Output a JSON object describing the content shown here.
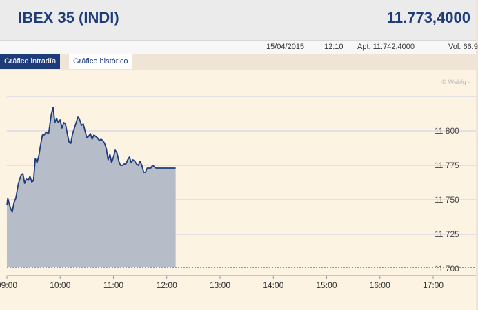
{
  "header": {
    "title": "IBEX 35 (INDI)",
    "price": "11.773,4000"
  },
  "infobar": {
    "date": "15/04/2015",
    "time": "12:10",
    "apt": "Apt. 11.742,4000",
    "vol": "Vol. 66.9"
  },
  "tabs": {
    "intraday": "Gráfico intradía",
    "historic": "Gráfico histórico"
  },
  "watermark": "© Webfg -",
  "colors": {
    "header_text": "#1f3c7a",
    "line": "#1f3c7a",
    "fill": "#b6bcc8",
    "chart_bg": "#fdf3e3",
    "grid": "#c7cde6"
  },
  "chart_data": {
    "type": "area",
    "title": "",
    "xlabel": "",
    "ylabel": "",
    "xlim": [
      "09:00",
      "17:00"
    ],
    "ylim": [
      11700,
      11825
    ],
    "y_ticks": [
      11700,
      11725,
      11750,
      11775,
      11800
    ],
    "y_tick_labels": [
      "11 700",
      "11 725",
      "11 750",
      "11 775",
      "11 800"
    ],
    "x_tick_labels": [
      "09:00",
      "10:00",
      "11:00",
      "12:00",
      "13:00",
      "14:00",
      "15:00",
      "16:00",
      "17:00"
    ],
    "baseline": 11701,
    "grid": true,
    "series": [
      {
        "x": [
          "09:00",
          "09:01",
          "09:04",
          "09:06",
          "09:08",
          "09:10",
          "09:13",
          "09:16",
          "09:18",
          "09:20",
          "09:22",
          "09:24",
          "09:26",
          "09:28",
          "09:30",
          "09:32",
          "09:34",
          "09:36",
          "09:38",
          "09:40",
          "09:42",
          "09:44",
          "09:47",
          "09:50",
          "09:52",
          "09:54",
          "09:56",
          "09:58",
          "10:00",
          "10:02",
          "10:04",
          "10:06",
          "10:08",
          "10:10",
          "10:12",
          "10:14",
          "10:16",
          "10:18",
          "10:20",
          "10:22",
          "10:24",
          "10:26",
          "10:28",
          "10:30",
          "10:32",
          "10:34",
          "10:36",
          "10:38",
          "10:40",
          "10:42",
          "10:44",
          "10:46",
          "10:48",
          "10:50",
          "10:52",
          "10:54",
          "10:56",
          "10:58",
          "11:00",
          "11:02",
          "11:04",
          "11:06",
          "11:08",
          "11:10",
          "11:12",
          "11:14",
          "11:16",
          "11:18",
          "11:20",
          "11:22",
          "11:24",
          "11:26",
          "11:28",
          "11:30",
          "11:32",
          "11:34",
          "11:36",
          "11:38",
          "11:40",
          "11:42",
          "11:44",
          "11:46",
          "11:48",
          "11:50",
          "11:52",
          "11:54",
          "11:56",
          "11:58",
          "12:00",
          "12:02",
          "12:04",
          "12:06",
          "12:08",
          "12:10"
        ],
        "y": [
          11746,
          11751,
          11744,
          11741,
          11748,
          11751,
          11762,
          11768,
          11769,
          11762,
          11765,
          11764,
          11767,
          11763,
          11764,
          11780,
          11777,
          11782,
          11790,
          11797,
          11797,
          11799,
          11798,
          11812,
          11817,
          11806,
          11809,
          11806,
          11808,
          11802,
          11806,
          11805,
          11798,
          11792,
          11791,
          11798,
          11802,
          11806,
          11810,
          11808,
          11804,
          11805,
          11800,
          11795,
          11796,
          11798,
          11794,
          11797,
          11796,
          11795,
          11793,
          11794,
          11793,
          11791,
          11787,
          11779,
          11783,
          11777,
          11781,
          11786,
          11784,
          11778,
          11775,
          11775,
          11776,
          11776,
          11779,
          11781,
          11777,
          11779,
          11778,
          11776,
          11775,
          11778,
          11775,
          11770,
          11770,
          11773,
          11773,
          11773,
          11775,
          11774,
          11773,
          11773,
          11773,
          11773,
          11773,
          11773,
          11773,
          11773,
          11773,
          11773,
          11773,
          11773
        ]
      }
    ]
  }
}
